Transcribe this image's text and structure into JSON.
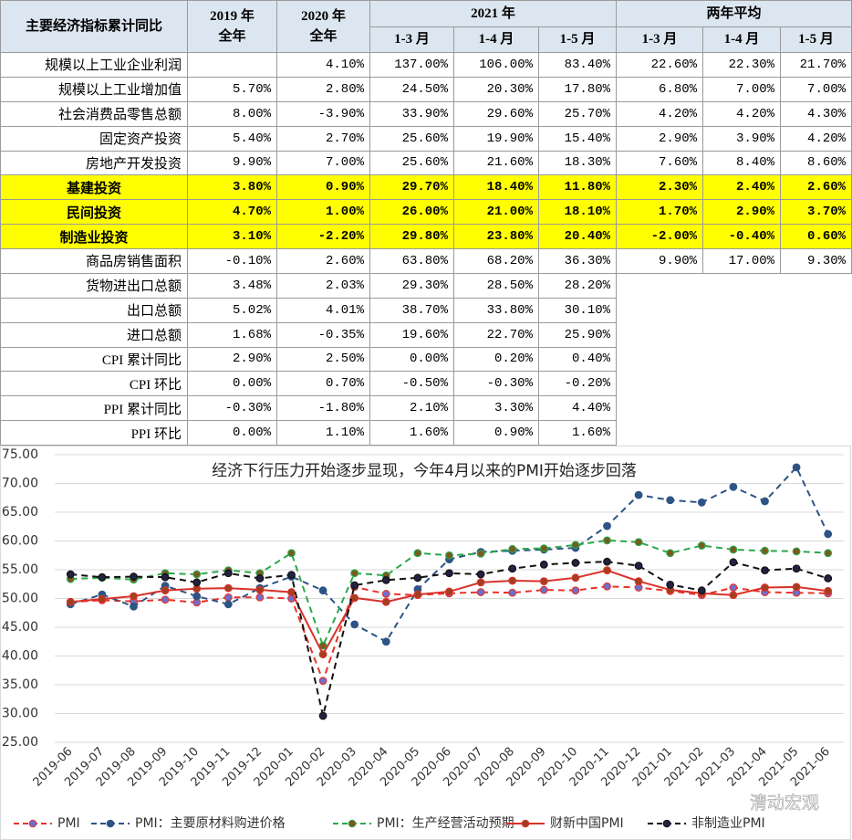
{
  "table": {
    "header_top": [
      "主要经济指标累计同比",
      "2019 年\n全年",
      "2020 年\n全年",
      "2021 年",
      "两年平均"
    ],
    "header_sub": [
      "1-3 月",
      "1-4 月",
      "1-5 月",
      "1-3 月",
      "1-4 月",
      "1-5 月"
    ],
    "highlight_color": "#ffff00",
    "rows": [
      {
        "label": "规模以上工业企业利润",
        "cells": [
          null,
          "4.10%",
          "137.00%",
          "106.00%",
          "83.40%",
          "22.60%",
          "22.30%",
          "21.70%"
        ]
      },
      {
        "label": "规模以上工业增加值",
        "cells": [
          "5.70%",
          "2.80%",
          "24.50%",
          "20.30%",
          "17.80%",
          "6.80%",
          "7.00%",
          "7.00%"
        ]
      },
      {
        "label": "社会消费品零售总额",
        "cells": [
          "8.00%",
          "-3.90%",
          "33.90%",
          "29.60%",
          "25.70%",
          "4.20%",
          "4.20%",
          "4.30%"
        ]
      },
      {
        "label": "固定资产投资",
        "cells": [
          "5.40%",
          "2.70%",
          "25.60%",
          "19.90%",
          "15.40%",
          "2.90%",
          "3.90%",
          "4.20%"
        ]
      },
      {
        "label": "房地产开发投资",
        "cells": [
          "9.90%",
          "7.00%",
          "25.60%",
          "21.60%",
          "18.30%",
          "7.60%",
          "8.40%",
          "8.60%"
        ]
      },
      {
        "label": "基建投资",
        "highlight": true,
        "cells": [
          "3.80%",
          "0.90%",
          "29.70%",
          "18.40%",
          "11.80%",
          "2.30%",
          "2.40%",
          "2.60%"
        ]
      },
      {
        "label": "民间投资",
        "highlight": true,
        "cells": [
          "4.70%",
          "1.00%",
          "26.00%",
          "21.00%",
          "18.10%",
          "1.70%",
          "2.90%",
          "3.70%"
        ]
      },
      {
        "label": "制造业投资",
        "highlight": true,
        "cells": [
          "3.10%",
          "-2.20%",
          "29.80%",
          "23.80%",
          "20.40%",
          "-2.00%",
          "-0.40%",
          "0.60%"
        ]
      },
      {
        "label": "商品房销售面积",
        "cells": [
          "-0.10%",
          "2.60%",
          "63.80%",
          "68.20%",
          "36.30%",
          "9.90%",
          "17.00%",
          "9.30%"
        ]
      },
      {
        "label": "货物进出口总额",
        "cells": [
          "3.48%",
          "2.03%",
          "29.30%",
          "28.50%",
          "28.20%"
        ]
      },
      {
        "label": "出口总额",
        "cells": [
          "5.02%",
          "4.01%",
          "38.70%",
          "33.80%",
          "30.10%"
        ]
      },
      {
        "label": "进口总额",
        "cells": [
          "1.68%",
          "-0.35%",
          "19.60%",
          "22.70%",
          "25.90%"
        ]
      },
      {
        "label": "CPI 累计同比",
        "cells": [
          "2.90%",
          "2.50%",
          "0.00%",
          "0.20%",
          "0.40%"
        ]
      },
      {
        "label": "CPI 环比",
        "cells": [
          "0.00%",
          "0.70%",
          "-0.50%",
          "-0.30%",
          "-0.20%"
        ]
      },
      {
        "label": "PPI 累计同比",
        "cells": [
          "-0.30%",
          "-1.80%",
          "2.10%",
          "3.30%",
          "4.40%"
        ]
      },
      {
        "label": "PPI 环比",
        "cells": [
          "0.00%",
          "1.10%",
          "1.60%",
          "0.90%",
          "1.60%"
        ]
      }
    ]
  },
  "chart_data": {
    "type": "line",
    "title": "经济下行压力开始逐步显现，今年4月以来的PMI开始逐步回落",
    "watermark": "清动宏观",
    "categories": [
      "2019-06",
      "2019-07",
      "2019-08",
      "2019-09",
      "2019-10",
      "2019-11",
      "2019-12",
      "2020-01",
      "2020-02",
      "2020-03",
      "2020-04",
      "2020-05",
      "2020-06",
      "2020-07",
      "2020-08",
      "2020-09",
      "2020-10",
      "2020-11",
      "2020-12",
      "2021-01",
      "2021-02",
      "2021-03",
      "2021-04",
      "2021-05",
      "2021-06"
    ],
    "ylim": [
      25,
      75
    ],
    "yticks": [
      {
        "value": 25,
        "label": "25.00"
      },
      {
        "value": 30,
        "label": "30.00"
      },
      {
        "value": 35,
        "label": "35.00"
      },
      {
        "value": 40,
        "label": "40.00"
      },
      {
        "value": 45,
        "label": "45.00"
      },
      {
        "value": 50,
        "label": "50.00"
      },
      {
        "value": 55,
        "label": "55.00"
      },
      {
        "value": 60,
        "label": "60.00"
      },
      {
        "value": 65,
        "label": "65.00"
      },
      {
        "value": 70,
        "label": "70.00"
      },
      {
        "value": 75,
        "label": "75.00"
      }
    ],
    "grid": true,
    "legend": "bottom",
    "series": [
      {
        "name": "PMI",
        "color": "#e8332a",
        "marker_color": "#6b6fd0",
        "dashed": true,
        "values": [
          49.4,
          49.7,
          49.5,
          49.8,
          49.3,
          50.2,
          50.2,
          50.0,
          35.7,
          52.0,
          50.8,
          50.6,
          50.9,
          51.1,
          51.0,
          51.5,
          51.4,
          52.1,
          51.9,
          51.3,
          50.6,
          51.9,
          51.1,
          51.0,
          50.9
        ]
      },
      {
        "name": "PMI：主要原材料购进价格",
        "color": "#2e5486",
        "marker_color": "#2e5486",
        "dashed": true,
        "values": [
          49.0,
          50.7,
          48.6,
          52.2,
          50.4,
          49.0,
          51.8,
          53.8,
          51.4,
          45.5,
          42.5,
          51.6,
          56.8,
          58.1,
          58.3,
          58.5,
          58.8,
          62.6,
          68.0,
          67.1,
          66.7,
          69.4,
          66.9,
          72.8,
          61.2
        ]
      },
      {
        "name": "PMI：生产经营活动预期",
        "color": "#2aa84a",
        "marker_color": "#7a5a1e",
        "dashed": true,
        "values": [
          53.4,
          53.6,
          53.3,
          54.4,
          54.2,
          54.9,
          54.4,
          57.9,
          41.8,
          54.4,
          54.0,
          57.9,
          57.5,
          57.8,
          58.6,
          58.7,
          59.3,
          60.1,
          59.8,
          57.9,
          59.2,
          58.5,
          58.3,
          58.2,
          57.9
        ]
      },
      {
        "name": "财新中国PMI",
        "color": "#d9312a",
        "marker_color": "#a04020",
        "dashed": false,
        "values": [
          49.4,
          49.9,
          50.4,
          51.4,
          51.7,
          51.8,
          51.5,
          51.1,
          40.3,
          50.1,
          49.4,
          50.7,
          51.2,
          52.8,
          53.1,
          53.0,
          53.6,
          54.9,
          53.0,
          51.5,
          50.9,
          50.6,
          51.9,
          52.0,
          51.3
        ]
      },
      {
        "name": "非制造业PMI",
        "color": "#111111",
        "marker_color": "#222244",
        "dashed": true,
        "values": [
          54.2,
          53.7,
          53.8,
          53.7,
          52.8,
          54.4,
          53.5,
          54.1,
          29.6,
          52.3,
          53.2,
          53.6,
          54.4,
          54.2,
          55.2,
          55.9,
          56.2,
          56.4,
          55.7,
          52.4,
          51.4,
          56.3,
          54.9,
          55.2,
          53.5
        ]
      }
    ]
  }
}
